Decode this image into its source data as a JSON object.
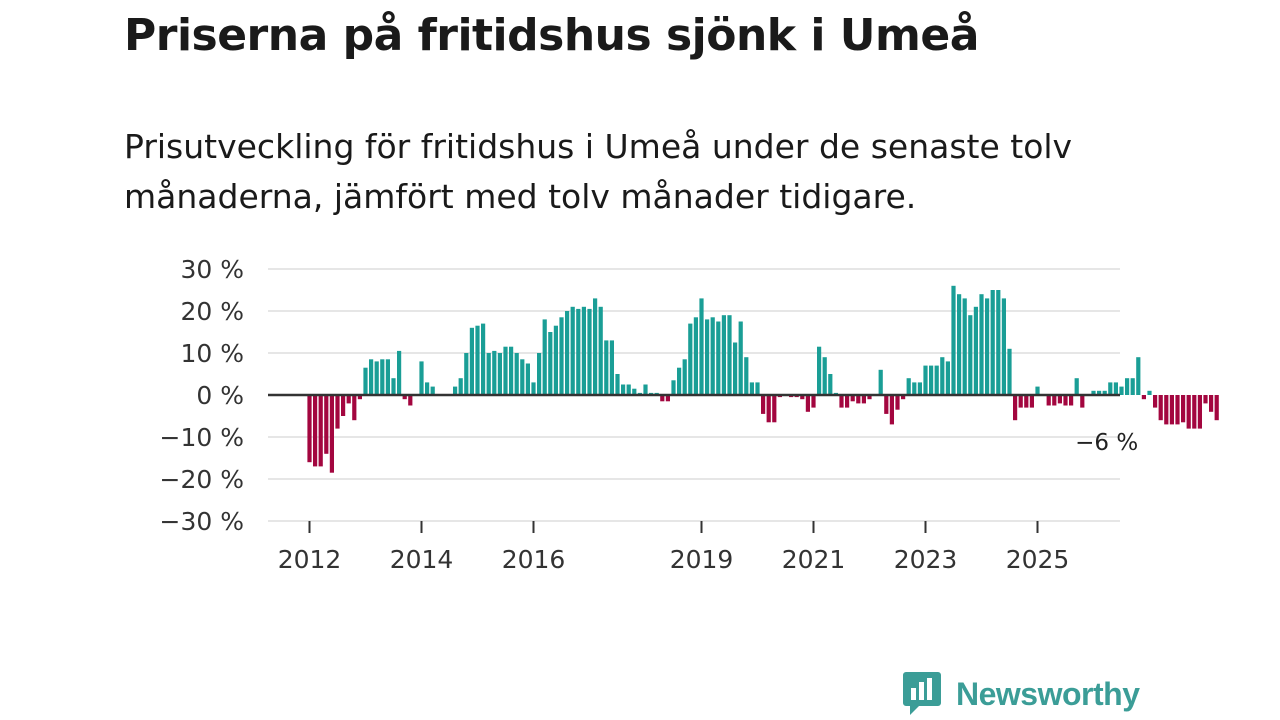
{
  "header": {
    "title": "Priserna på fritidshus sjönk i Umeå",
    "subtitle": "Prisutveckling för fritidshus i Umeå under de senaste tolv månaderna, jämfört med tolv månader tidigare."
  },
  "brand": {
    "name": "Newsworthy",
    "icon": "newsworthy-logo-icon",
    "color": "#3b9d97"
  },
  "colors": {
    "positive": "#1a9e96",
    "negative": "#a3063f",
    "zero_line": "#333333",
    "grid": "#dddddd"
  },
  "chart_data": {
    "type": "bar",
    "title": "Priserna på fritidshus sjönk i Umeå",
    "ylabel": "",
    "xlabel": "",
    "ylim": [
      -30,
      30
    ],
    "yticks": [
      30,
      20,
      10,
      0,
      -10,
      -20,
      -30
    ],
    "ytick_labels": [
      "30 %",
      "20 %",
      "10 %",
      "0 %",
      "−10 %",
      "−20 %",
      "−30 %"
    ],
    "xticks": [
      {
        "label": "2012",
        "index": 0
      },
      {
        "label": "2014",
        "index": 20
      },
      {
        "label": "2016",
        "index": 40
      },
      {
        "label": "2019",
        "index": 70
      },
      {
        "label": "2021",
        "index": 90
      },
      {
        "label": "2023",
        "index": 110
      },
      {
        "label": "2025",
        "index": 130
      }
    ],
    "annotation": {
      "text": "−6 %",
      "index": 137
    },
    "series": [
      {
        "name": "Prisutveckling",
        "values": [
          -16,
          -17,
          -17,
          -14,
          -18.5,
          -8,
          -5,
          -2,
          -6,
          -1,
          6.5,
          8.5,
          8,
          8.5,
          8.5,
          4,
          10.5,
          -1,
          -2.5,
          0,
          8,
          3,
          2,
          0,
          0,
          0,
          2,
          4,
          10,
          16,
          16.5,
          17,
          10,
          10.5,
          10,
          11.5,
          11.5,
          10,
          8.5,
          7.5,
          3,
          10,
          18,
          15,
          16.5,
          18.5,
          20,
          21,
          20.5,
          21,
          20.5,
          23,
          21,
          13,
          13,
          5,
          2.5,
          2.5,
          1.5,
          0.5,
          2.5,
          0.5,
          0.5,
          -1.5,
          -1.5,
          3.5,
          6.5,
          8.5,
          17,
          18.5,
          23,
          18,
          18.5,
          17.5,
          19,
          19,
          12.5,
          17.5,
          9,
          3,
          3,
          -4.5,
          -6.5,
          -6.5,
          -0.5,
          0,
          -0.5,
          -0.5,
          -1,
          -4,
          -3,
          11.5,
          9,
          5,
          0.5,
          -3,
          -3,
          -1.5,
          -2,
          -2,
          -1,
          0,
          6,
          -4.5,
          -7,
          -3.5,
          -1,
          4,
          3,
          3,
          7,
          7,
          7,
          9,
          8,
          26,
          24,
          23,
          19,
          21,
          24,
          23,
          25,
          25,
          23,
          11,
          -6,
          -3,
          -3,
          -3,
          2,
          0,
          -2.5,
          -2.5,
          -2,
          -2.5,
          -2.5,
          4,
          -3,
          0,
          1,
          1,
          1,
          3,
          3,
          2,
          4,
          4,
          9,
          -1,
          1,
          -3,
          -6,
          -7,
          -7,
          -7,
          -6.5,
          -8,
          -8,
          -8,
          -2,
          -4,
          -6
        ]
      }
    ]
  }
}
